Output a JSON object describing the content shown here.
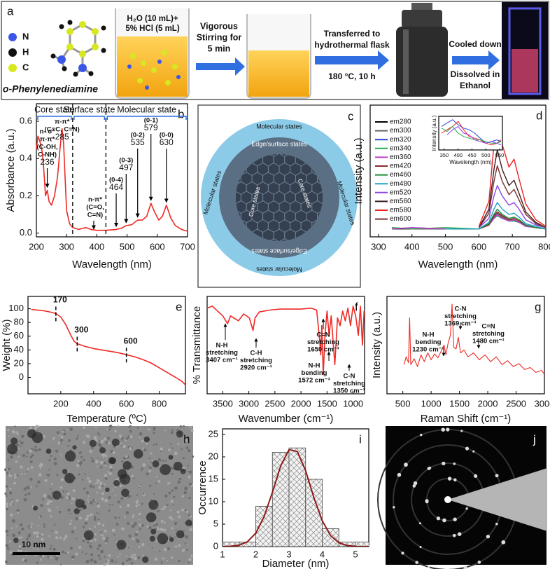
{
  "scheme": {
    "label": "a",
    "atoms": [
      "N",
      "H",
      "C"
    ],
    "compound": "o-Phenylenediamine",
    "beaker": [
      "H₂O (10 mL)+",
      "5% HCl (5 mL)"
    ],
    "step1": [
      "Vigorous",
      "Stirring for",
      "5 min"
    ],
    "step2": [
      "Transferred to",
      "hydrothermal flask"
    ],
    "step2_condition": "180 °C, 10 h",
    "step3": [
      "Cooled down",
      "Dissolved in",
      "Ethanol"
    ]
  },
  "diagram": {
    "label": "c",
    "molecular": "Molecular states",
    "edge": "Edge/surface states",
    "core": "Core states"
  },
  "tem": {
    "label": "h",
    "scale_bar": "10 nm"
  },
  "saed": {
    "label": "j"
  },
  "chart_data": [
    {
      "type": "line",
      "label": "b",
      "xlabel": "Wavelength (nm)",
      "ylabel": "Absorbance (a.u.)",
      "xlim": [
        200,
        700
      ],
      "ylim": [
        -0.02,
        0.694
      ],
      "xticks": [
        200,
        300,
        400,
        500,
        600,
        700
      ],
      "yticks": [
        {
          "value": 0,
          "label": "0.0"
        },
        0.2,
        0.4,
        0.6
      ],
      "regions": [
        "Core state",
        "Surface state",
        "Molecular state"
      ],
      "region_bounds": [
        320,
        430
      ],
      "x": [
        200,
        205,
        210,
        215,
        220,
        225,
        230,
        236,
        242,
        250,
        260,
        270,
        278,
        285,
        290,
        295,
        300,
        310,
        320,
        340,
        364,
        380,
        400,
        430,
        464,
        480,
        497,
        515,
        535,
        550,
        565,
        579,
        592,
        605,
        617,
        630,
        645,
        660,
        680,
        700
      ],
      "series": [
        {
          "color": "#ee2a24",
          "values": [
            0.45,
            0.52,
            0.5,
            0.47,
            0.43,
            0.33,
            0.2,
            0.23,
            0.17,
            0.15,
            0.2,
            0.3,
            0.45,
            0.56,
            0.48,
            0.3,
            0.12,
            0.05,
            0.03,
            0.02,
            0.03,
            0.02,
            0.015,
            0.015,
            0.02,
            0.025,
            0.04,
            0.045,
            0.07,
            0.07,
            0.09,
            0.16,
            0.11,
            0.07,
            0.09,
            0.15,
            0.08,
            0.04,
            0.02,
            0.01
          ]
        }
      ],
      "peaks": [
        {
          "value": 236,
          "note": [
            "n- σ*",
            "π-π*",
            "(C-OH,",
            "C-NH)"
          ]
        },
        {
          "value": 285,
          "note": [
            "π-π*",
            "(C=C, C=N)"
          ]
        },
        {
          "value": 464,
          "note": [
            "(0-4)"
          ]
        },
        {
          "value": 497,
          "note": [
            "(0-3)"
          ]
        },
        {
          "value": 535,
          "note": [
            "(0-2)"
          ]
        },
        {
          "value": 579,
          "note": [
            "(0-1)"
          ]
        },
        {
          "value": 630,
          "note": [
            "(0-0)"
          ]
        }
      ],
      "n_pi": [
        "n-π*",
        "(C=O,",
        "C=N)"
      ]
    },
    {
      "type": "line",
      "label": "d",
      "xlabel": "Wavelength (nm)",
      "ylabel": "Intensity (a.u.)",
      "xlim": [
        275,
        800
      ],
      "ylim": [
        0,
        1
      ],
      "xticks": [
        300,
        400,
        500,
        600,
        700,
        800
      ],
      "x": [
        340,
        400,
        500,
        600,
        630,
        645,
        655,
        670,
        690,
        705,
        720,
        740,
        770,
        800
      ],
      "series": [
        {
          "name": "em280",
          "color": "#000000",
          "values": [
            0.06,
            0.06,
            0.06,
            0.06,
            0.09,
            0.15,
            0.18,
            0.15,
            0.13,
            0.13,
            0.11,
            0.09,
            0.07,
            0.06
          ]
        },
        {
          "name": "em300",
          "color": "#666666",
          "values": [
            0.07,
            0.06,
            0.06,
            0.06,
            0.09,
            0.15,
            0.18,
            0.15,
            0.13,
            0.13,
            0.11,
            0.09,
            0.07,
            0.06
          ]
        },
        {
          "name": "em320",
          "color": "#2747d6",
          "values": [
            0.06,
            0.07,
            0.06,
            0.06,
            0.09,
            0.14,
            0.16,
            0.14,
            0.12,
            0.12,
            0.11,
            0.08,
            0.07,
            0.06
          ]
        },
        {
          "name": "em340",
          "color": "#2aa84f",
          "values": [
            0.07,
            0.06,
            0.07,
            0.06,
            0.09,
            0.14,
            0.16,
            0.14,
            0.12,
            0.12,
            0.11,
            0.08,
            0.07,
            0.06
          ]
        },
        {
          "name": "em360",
          "color": "#c23cc8",
          "values": [
            0.06,
            0.07,
            0.06,
            0.06,
            0.09,
            0.14,
            0.17,
            0.14,
            0.12,
            0.13,
            0.11,
            0.08,
            0.07,
            0.06
          ]
        },
        {
          "name": "em420",
          "color": "#8b2a2a",
          "values": [
            null,
            null,
            0.06,
            0.06,
            0.09,
            0.16,
            0.19,
            0.16,
            0.13,
            0.14,
            0.12,
            0.09,
            0.07,
            0.06
          ]
        },
        {
          "name": "em460",
          "color": "#1a8a3a",
          "values": [
            null,
            null,
            0.06,
            0.06,
            0.1,
            0.17,
            0.21,
            0.17,
            0.14,
            0.15,
            0.13,
            0.09,
            0.07,
            0.06
          ]
        },
        {
          "name": "em480",
          "color": "#1ca3c4",
          "values": [
            null,
            null,
            0.06,
            0.06,
            0.11,
            0.21,
            0.26,
            0.21,
            0.17,
            0.18,
            0.15,
            0.1,
            0.08,
            0.06
          ]
        },
        {
          "name": "em520",
          "color": "#8a44e6",
          "values": [
            null,
            null,
            null,
            0.07,
            0.14,
            0.31,
            0.39,
            0.31,
            0.24,
            0.26,
            0.21,
            0.13,
            0.09,
            0.07
          ]
        },
        {
          "name": "em560",
          "color": "#3b1f1f",
          "values": [
            null,
            null,
            null,
            0.07,
            0.21,
            0.51,
            0.66,
            0.51,
            0.39,
            0.43,
            0.33,
            0.19,
            0.11,
            0.07
          ]
        },
        {
          "name": "em580",
          "color": "#ee2020",
          "values": [
            null,
            null,
            null,
            0.08,
            0.27,
            0.7,
            0.91,
            0.7,
            0.53,
            0.59,
            0.44,
            0.25,
            0.13,
            0.08
          ]
        },
        {
          "name": "em600",
          "color": "#7a3030",
          "values": [
            null,
            null,
            null,
            0.07,
            0.18,
            0.42,
            0.54,
            0.42,
            0.32,
            0.36,
            0.28,
            0.17,
            0.1,
            0.07
          ]
        }
      ],
      "inset": {
        "xlabel": "Wavelength (nm)",
        "ylabel": "Intensity (a.u.)",
        "xlim": [
          330,
          560
        ],
        "ylim": [
          0,
          1
        ],
        "xticks": [
          350,
          400,
          450,
          500,
          550
        ],
        "x": [
          340,
          360,
          380,
          400,
          420,
          440,
          460,
          480,
          500,
          520,
          540,
          555
        ],
        "series": [
          {
            "color": "#2747d6",
            "values": [
              0.7,
              0.8,
              0.9,
              0.75,
              0.65,
              0.6,
              0.5,
              0.35,
              0.2,
              0.25,
              0.3,
              0.25
            ]
          },
          {
            "color": "#ee2020",
            "values": [
              0.5,
              0.6,
              0.7,
              0.85,
              0.6,
              0.4,
              0.35,
              0.3,
              0.2,
              0.15,
              0.2,
              0.3
            ]
          },
          {
            "color": "#2aa84f",
            "values": [
              0.65,
              0.55,
              0.7,
              0.5,
              0.4,
              0.35,
              0.3,
              0.3,
              0.25,
              0.2,
              0.2,
              0.25
            ]
          },
          {
            "color": "#8a44e6",
            "values": [
              null,
              0.45,
              0.6,
              0.7,
              0.5,
              0.45,
              0.3,
              0.25,
              0.2,
              0.25,
              0.2,
              0.15
            ]
          }
        ]
      }
    },
    {
      "type": "line",
      "label": "e",
      "xlabel": "Temperature (ºC)",
      "ylabel": "Weight (%)",
      "xlim": [
        0,
        960
      ],
      "ylim": [
        -24,
        118
      ],
      "xticks": [
        200,
        400,
        600,
        800
      ],
      "yticks": [
        0,
        20,
        40,
        60,
        80,
        100
      ],
      "x": [
        20,
        60,
        100,
        140,
        170,
        200,
        230,
        260,
        280,
        300,
        350,
        400,
        450,
        500,
        550,
        600,
        650,
        700,
        750,
        800,
        850,
        900,
        940,
        960
      ],
      "series": [
        {
          "color": "#ee2a24",
          "values": [
            99,
            98,
            97,
            95,
            93,
            88,
            77,
            62,
            53,
            49,
            45,
            42,
            40,
            38,
            36,
            33,
            30,
            26,
            21,
            14,
            7,
            0,
            -6,
            -11
          ]
        }
      ],
      "marks": [
        170,
        300,
        600
      ]
    },
    {
      "type": "line",
      "label": "f",
      "xlabel": "Wavenumber (cm⁻¹)",
      "ylabel": "% Transmittance",
      "xlim": [
        3800,
        780
      ],
      "ylim": [
        0,
        100
      ],
      "xticks": [
        3500,
        3000,
        2500,
        2000,
        1500,
        1000
      ],
      "x": [
        3800,
        3700,
        3600,
        3500,
        3407,
        3350,
        3200,
        3100,
        2990,
        2920,
        2880,
        2800,
        2600,
        2400,
        2200,
        2000,
        1800,
        1700,
        1650,
        1620,
        1600,
        1572,
        1540,
        1500,
        1460,
        1420,
        1350,
        1300,
        1250,
        1200,
        1150,
        1100,
        1050,
        1000,
        950,
        900,
        860,
        820,
        790
      ],
      "series": [
        {
          "color": "#ee2a24",
          "values": [
            88,
            90,
            85,
            80,
            72,
            80,
            75,
            82,
            78,
            65,
            78,
            84,
            86,
            87,
            87,
            87,
            88,
            86,
            60,
            40,
            70,
            20,
            60,
            85,
            60,
            80,
            30,
            78,
            70,
            85,
            75,
            88,
            70,
            90,
            80,
            60,
            90,
            50,
            85
          ]
        }
      ],
      "annotations": [
        [
          "N-H",
          "stretching",
          "3407 cm⁻¹"
        ],
        [
          "C-H",
          "stretching",
          "2920 cm⁻¹"
        ],
        [
          "C=N",
          "stretching",
          "1650 cm⁻¹"
        ],
        [
          "N-H",
          "bending",
          "1572 cm⁻¹"
        ],
        [
          "C-N",
          "stretching",
          "1350 cm⁻¹"
        ]
      ]
    },
    {
      "type": "line",
      "label": "g",
      "xlabel": "Raman Shift (cm⁻¹)",
      "ylabel": "Intensity (a.u.)",
      "xlim": [
        220,
        3000
      ],
      "ylim": [
        0,
        100
      ],
      "xticks": [
        500,
        1000,
        1500,
        2000,
        2500,
        3000
      ],
      "x": [
        520,
        560,
        600,
        620,
        640,
        700,
        760,
        820,
        880,
        940,
        1000,
        1060,
        1120,
        1180,
        1230,
        1260,
        1300,
        1340,
        1369,
        1400,
        1440,
        1480,
        1520,
        1580,
        1650,
        1750,
        1850,
        1950,
        2050,
        2150,
        2250,
        2350,
        2450,
        2550,
        2650,
        2750,
        2850,
        2950,
        3000
      ],
      "series": [
        {
          "color": "#ee2a24",
          "values": [
            30,
            38,
            32,
            78,
            30,
            36,
            28,
            40,
            33,
            42,
            35,
            41,
            37,
            44,
            50,
            40,
            52,
            60,
            92,
            48,
            46,
            58,
            42,
            45,
            38,
            42,
            35,
            40,
            33,
            38,
            30,
            34,
            28,
            31,
            25,
            27,
            22,
            24,
            20
          ]
        }
      ],
      "annotations": [
        [
          "C-N",
          "stretching",
          "1369 cm⁻¹"
        ],
        [
          "N-H",
          "bending",
          "1230 cm⁻¹"
        ],
        [
          "C=N",
          "stretching",
          "1480 cm⁻¹"
        ]
      ]
    },
    {
      "type": "histogram",
      "label": "i",
      "xlabel": "Diameter (nm)",
      "ylabel": "Occurrence",
      "xlim": [
        1,
        5.4
      ],
      "ylim": [
        0,
        26.25
      ],
      "xticks": [
        1,
        2,
        3,
        4,
        5
      ],
      "yticks": [
        0,
        5,
        10,
        15,
        20,
        25
      ],
      "bins": [
        1,
        1.5,
        2,
        2.5,
        3,
        3.5,
        4,
        4.5,
        5,
        5.5
      ],
      "counts": [
        1,
        1,
        9,
        21,
        22,
        15,
        4,
        1,
        1
      ],
      "color": "#f2f2f2",
      "fit": {
        "color": "#8b1a1a",
        "x": [
          1,
          1.25,
          1.5,
          1.75,
          2,
          2.25,
          2.5,
          2.75,
          3,
          3.25,
          3.5,
          3.75,
          4,
          4.25,
          4.5,
          4.75,
          5,
          5.25,
          5.5
        ],
        "values": [
          0.02,
          0.08,
          0.32,
          1.08,
          2.98,
          6.67,
          12.1,
          17.97,
          21.6,
          21.2,
          16.9,
          10.9,
          5.77,
          2.47,
          0.86,
          0.24,
          0.06,
          0.01,
          0
        ]
      }
    }
  ]
}
